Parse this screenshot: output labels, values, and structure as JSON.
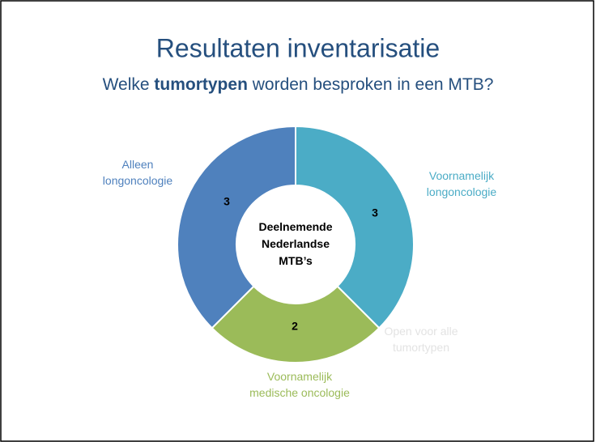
{
  "chart_data": {
    "type": "donut",
    "title": "Resultaten inventarisatie",
    "subtitle": [
      "Welke ",
      "tumortypen",
      " worden besproken in een MTB?"
    ],
    "center_label": [
      "Deelnemende",
      "Nederlandse",
      "MTB’s"
    ],
    "categories": [
      [
        "Voornamelijk",
        "longoncologie"
      ],
      [
        "Open voor alle",
        "tumortypen"
      ],
      [
        "Voornamelijk",
        "medische oncologie"
      ],
      [
        "Alleen",
        "longoncologie"
      ]
    ],
    "values": [
      3,
      0,
      2,
      3
    ],
    "colors": [
      "#4bacc6",
      "#8064a2",
      "#9bbb59",
      "#4f81bd"
    ],
    "label_colors": [
      "#4bacc6",
      "#e3e3e3",
      "#9bbb59",
      "#4f81bd"
    ]
  }
}
